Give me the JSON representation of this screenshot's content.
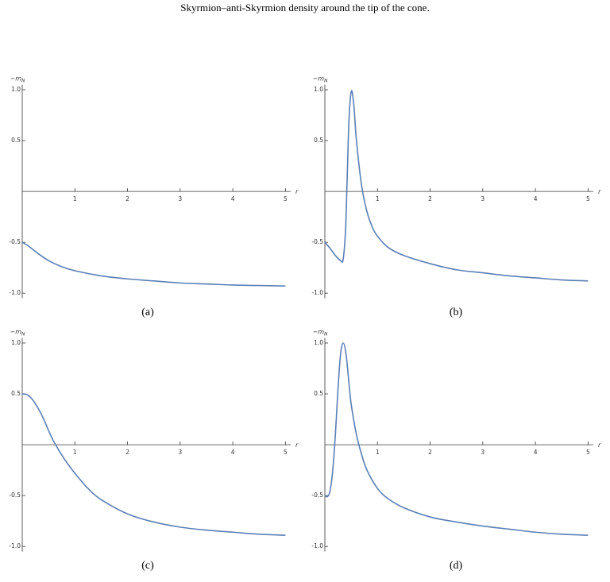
{
  "caption_line": "Skyrmion–anti-Skyrmion density around the tip of the cone.",
  "chart_data": [
    {
      "type": "line",
      "caption": "(a)",
      "ylabel": "−m",
      "ylabel_sub": "N",
      "xlabel": "r",
      "xlim": [
        0,
        5.1
      ],
      "ylim": [
        -1.05,
        1.05
      ],
      "xticks": [
        1,
        2,
        3,
        4,
        5
      ],
      "yticks": [
        {
          "value": -1,
          "label": "-1.0"
        },
        {
          "value": -0.5,
          "label": "-0.5"
        },
        {
          "value": 0.5,
          "label": "0.5"
        },
        {
          "value": 1,
          "label": "1.0"
        }
      ],
      "x": [
        0,
        0.1,
        0.2,
        0.3,
        0.5,
        0.75,
        1,
        1.5,
        2,
        2.5,
        3,
        3.5,
        4,
        4.5,
        5
      ],
      "series": [
        {
          "color": "#5a7fb5",
          "values": [
            -0.5,
            -0.53,
            -0.57,
            -0.61,
            -0.68,
            -0.74,
            -0.78,
            -0.83,
            -0.86,
            -0.88,
            -0.9,
            -0.91,
            -0.92,
            -0.925,
            -0.93
          ]
        }
      ]
    },
    {
      "type": "line",
      "caption": "(b)",
      "ylabel": "−m",
      "ylabel_sub": "N",
      "xlabel": "r",
      "xlim": [
        0,
        5.1
      ],
      "ylim": [
        -1.05,
        1.05
      ],
      "xticks": [
        1,
        2,
        3,
        4,
        5
      ],
      "yticks": [
        {
          "value": -1,
          "label": "-1.0"
        },
        {
          "value": -0.5,
          "label": "-0.5"
        },
        {
          "value": 0.5,
          "label": "0.5"
        },
        {
          "value": 1,
          "label": "1.0"
        }
      ],
      "x": [
        0,
        0.1,
        0.2,
        0.3,
        0.35,
        0.4,
        0.45,
        0.5,
        0.55,
        0.6,
        0.7,
        0.8,
        0.9,
        1,
        1.2,
        1.5,
        2,
        2.5,
        3,
        3.5,
        4,
        4.5,
        5
      ],
      "series": [
        {
          "color": "#5a7fb5",
          "values": [
            -0.5,
            -0.56,
            -0.63,
            -0.68,
            -0.66,
            -0.3,
            0.6,
            0.98,
            0.85,
            0.5,
            0.05,
            -0.2,
            -0.35,
            -0.44,
            -0.55,
            -0.63,
            -0.71,
            -0.77,
            -0.8,
            -0.83,
            -0.85,
            -0.87,
            -0.88
          ]
        }
      ]
    },
    {
      "type": "line",
      "caption": "(c)",
      "ylabel": "−m",
      "ylabel_sub": "N",
      "xlabel": "r",
      "xlim": [
        0,
        5.1
      ],
      "ylim": [
        -1.05,
        1.05
      ],
      "xticks": [
        1,
        2,
        3,
        4,
        5
      ],
      "yticks": [
        {
          "value": -1,
          "label": "-1.0"
        },
        {
          "value": -0.5,
          "label": "-0.5"
        },
        {
          "value": 0.5,
          "label": "0.5"
        },
        {
          "value": 1,
          "label": "1.0"
        }
      ],
      "x": [
        0,
        0.1,
        0.2,
        0.3,
        0.4,
        0.5,
        0.6,
        0.8,
        1,
        1.25,
        1.5,
        2,
        2.5,
        3,
        3.5,
        4,
        4.5,
        5
      ],
      "series": [
        {
          "color": "#5a7fb5",
          "values": [
            0.5,
            0.49,
            0.44,
            0.36,
            0.26,
            0.14,
            0.03,
            -0.14,
            -0.28,
            -0.43,
            -0.54,
            -0.68,
            -0.76,
            -0.81,
            -0.84,
            -0.86,
            -0.88,
            -0.89
          ]
        }
      ]
    },
    {
      "type": "line",
      "caption": "(d)",
      "ylabel": "−m",
      "ylabel_sub": "N",
      "xlabel": "r",
      "xlim": [
        0,
        5.1
      ],
      "ylim": [
        -1.05,
        1.05
      ],
      "xticks": [
        1,
        2,
        3,
        4,
        5
      ],
      "yticks": [
        {
          "value": -1,
          "label": "-1.0"
        },
        {
          "value": -0.5,
          "label": "-0.5"
        },
        {
          "value": 0.5,
          "label": "0.5"
        },
        {
          "value": 1,
          "label": "1.0"
        }
      ],
      "x": [
        0,
        0.05,
        0.1,
        0.15,
        0.2,
        0.25,
        0.3,
        0.35,
        0.4,
        0.45,
        0.5,
        0.6,
        0.7,
        0.8,
        1,
        1.2,
        1.5,
        2,
        2.5,
        3,
        3.5,
        4,
        4.5,
        5
      ],
      "series": [
        {
          "color": "#5a7fb5",
          "values": [
            -0.5,
            -0.51,
            -0.45,
            -0.25,
            0.1,
            0.55,
            0.9,
            1.0,
            0.9,
            0.65,
            0.4,
            0.1,
            -0.1,
            -0.25,
            -0.43,
            -0.53,
            -0.62,
            -0.71,
            -0.76,
            -0.8,
            -0.83,
            -0.86,
            -0.88,
            -0.89
          ]
        }
      ]
    }
  ]
}
